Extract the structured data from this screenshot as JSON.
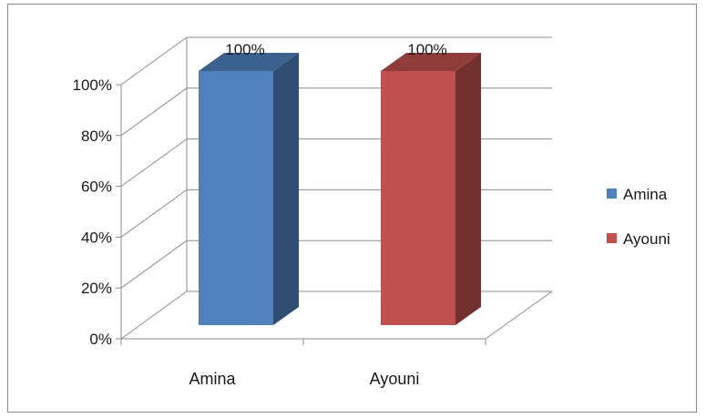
{
  "chart_data": {
    "type": "bar",
    "style": "3d-column",
    "categories": [
      "Amina",
      "Ayouni"
    ],
    "series": [
      {
        "name": "Amina",
        "color": "#4f81bd",
        "values": [
          100,
          null
        ]
      },
      {
        "name": "Ayouni",
        "color": "#c0504d",
        "values": [
          null,
          100
        ]
      }
    ],
    "data_labels": [
      "100%",
      "100%"
    ],
    "y_ticks": [
      "0%",
      "20%",
      "40%",
      "60%",
      "80%",
      "100%"
    ],
    "ylim": [
      0,
      100
    ],
    "grid": true,
    "legend": {
      "position": "right",
      "entries": [
        "Amina",
        "Ayouni"
      ]
    }
  }
}
